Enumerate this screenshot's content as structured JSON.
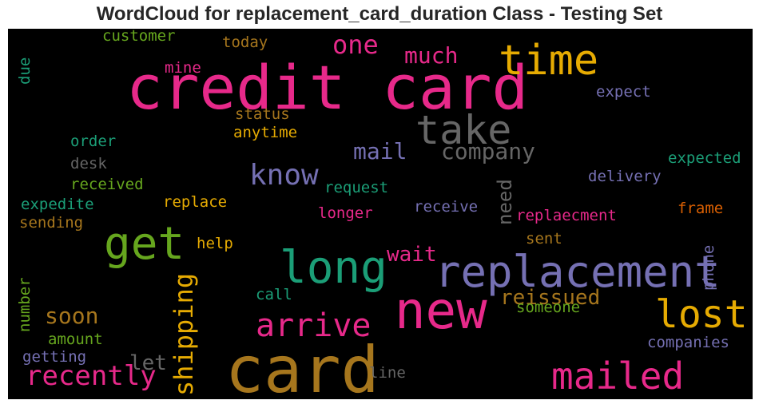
{
  "chart_data": {
    "type": "wordcloud",
    "title": "WordCloud for replacement_card_duration Class - Testing Set",
    "background": "#000000",
    "words": [
      {
        "text": "credit card",
        "color": "#e7298a",
        "weight": 1.0
      },
      {
        "text": "card",
        "color": "#a6761d",
        "weight": 0.95
      },
      {
        "text": "new",
        "color": "#e7298a",
        "weight": 0.9
      },
      {
        "text": "replacement",
        "color": "#7570b3",
        "weight": 0.75
      },
      {
        "text": "time",
        "color": "#e6ab02",
        "weight": 0.7
      },
      {
        "text": "get",
        "color": "#66a61e",
        "weight": 0.7
      },
      {
        "text": "long",
        "color": "#1b9e77",
        "weight": 0.7
      },
      {
        "text": "take",
        "color": "#666666",
        "weight": 0.65
      },
      {
        "text": "lost",
        "color": "#e6ab02",
        "weight": 0.6
      },
      {
        "text": "mailed",
        "color": "#e7298a",
        "weight": 0.6
      },
      {
        "text": "arrive",
        "color": "#e7298a",
        "weight": 0.55
      },
      {
        "text": "know",
        "color": "#7570b3",
        "weight": 0.5
      },
      {
        "text": "recently",
        "color": "#e7298a",
        "weight": 0.45
      },
      {
        "text": "shipping",
        "color": "#e6ab02",
        "weight": 0.45
      },
      {
        "text": "one",
        "color": "#e7298a",
        "weight": 0.4
      },
      {
        "text": "much",
        "color": "#e7298a",
        "weight": 0.35
      },
      {
        "text": "company",
        "color": "#666666",
        "weight": 0.35
      },
      {
        "text": "mail",
        "color": "#7570b3",
        "weight": 0.35
      },
      {
        "text": "wait",
        "color": "#e7298a",
        "weight": 0.35
      },
      {
        "text": "reissued",
        "color": "#a6761d",
        "weight": 0.35
      },
      {
        "text": "soon",
        "color": "#a6761d",
        "weight": 0.35
      },
      {
        "text": "let",
        "color": "#666666",
        "weight": 0.35
      },
      {
        "text": "need",
        "color": "#666666",
        "weight": 0.35
      },
      {
        "text": "customer",
        "color": "#66a61e",
        "weight": 0.2
      },
      {
        "text": "today",
        "color": "#a6761d",
        "weight": 0.2
      },
      {
        "text": "mine",
        "color": "#e7298a",
        "weight": 0.2
      },
      {
        "text": "due",
        "color": "#1b9e77",
        "weight": 0.2
      },
      {
        "text": "expect",
        "color": "#7570b3",
        "weight": 0.2
      },
      {
        "text": "status",
        "color": "#a6761d",
        "weight": 0.2
      },
      {
        "text": "anytime",
        "color": "#e6ab02",
        "weight": 0.2
      },
      {
        "text": "order",
        "color": "#1b9e77",
        "weight": 0.2
      },
      {
        "text": "desk",
        "color": "#666666",
        "weight": 0.2
      },
      {
        "text": "expected",
        "color": "#1b9e77",
        "weight": 0.2
      },
      {
        "text": "received",
        "color": "#66a61e",
        "weight": 0.2
      },
      {
        "text": "delivery",
        "color": "#7570b3",
        "weight": 0.2
      },
      {
        "text": "request",
        "color": "#1b9e77",
        "weight": 0.2
      },
      {
        "text": "expedite",
        "color": "#1b9e77",
        "weight": 0.2
      },
      {
        "text": "replace",
        "color": "#e6ab02",
        "weight": 0.2
      },
      {
        "text": "frame",
        "color": "#d95f02",
        "weight": 0.2
      },
      {
        "text": "receive",
        "color": "#7570b3",
        "weight": 0.2
      },
      {
        "text": "replaecment",
        "color": "#e7298a",
        "weight": 0.2
      },
      {
        "text": "sending",
        "color": "#a6761d",
        "weight": 0.2
      },
      {
        "text": "longer",
        "color": "#e7298a",
        "weight": 0.2
      },
      {
        "text": "sent",
        "color": "#a6761d",
        "weight": 0.2
      },
      {
        "text": "help",
        "color": "#e6ab02",
        "weight": 0.2
      },
      {
        "text": "phone",
        "color": "#7570b3",
        "weight": 0.2
      },
      {
        "text": "number",
        "color": "#66a61e",
        "weight": 0.2
      },
      {
        "text": "call",
        "color": "#1b9e77",
        "weight": 0.2
      },
      {
        "text": "someone",
        "color": "#66a61e",
        "weight": 0.2
      },
      {
        "text": "amount",
        "color": "#66a61e",
        "weight": 0.2
      },
      {
        "text": "getting",
        "color": "#7570b3",
        "weight": 0.2
      },
      {
        "text": "companies",
        "color": "#7570b3",
        "weight": 0.2
      },
      {
        "text": "line",
        "color": "#666666",
        "weight": 0.2
      }
    ]
  }
}
